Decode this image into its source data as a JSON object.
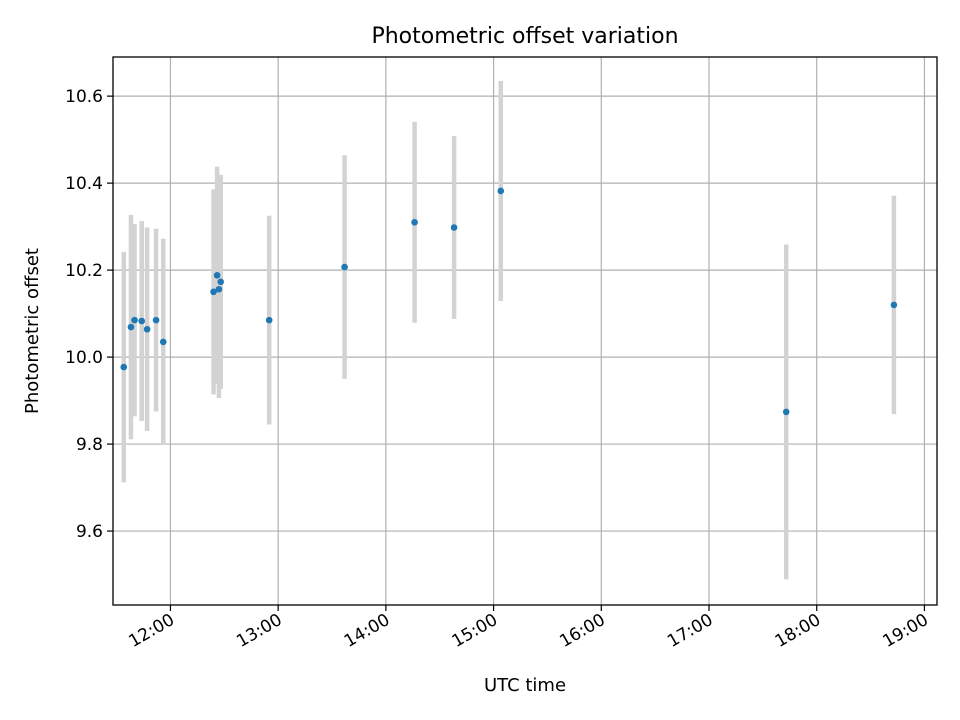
{
  "chart_data": {
    "type": "scatter",
    "title": "Photometric offset variation",
    "xlabel": "UTC time",
    "ylabel": "Photometric offset",
    "grid": true,
    "legend": "none",
    "xlim": [
      "11:28",
      "19:07"
    ],
    "ylim": [
      9.43,
      10.69
    ],
    "x_ticks": [
      "12:00",
      "13:00",
      "14:00",
      "15:00",
      "16:00",
      "17:00",
      "18:00",
      "19:00"
    ],
    "y_ticks": [
      9.6,
      9.8,
      10.0,
      10.2,
      10.4,
      10.6
    ],
    "y_tick_labels": [
      "9.6",
      "9.8",
      "10.0",
      "10.2",
      "10.4",
      "10.6"
    ],
    "colors": {
      "point": "#1f77b4",
      "errorbar": "#d3d3d3"
    },
    "points": [
      {
        "time": "11:34",
        "y": 9.977,
        "yerr": 0.265
      },
      {
        "time": "11:38",
        "y": 10.069,
        "yerr": 0.258
      },
      {
        "time": "11:40",
        "y": 10.085,
        "yerr": 0.221
      },
      {
        "time": "11:44",
        "y": 10.083,
        "yerr": 0.23
      },
      {
        "time": "11:47",
        "y": 10.064,
        "yerr": 0.234
      },
      {
        "time": "11:52",
        "y": 10.085,
        "yerr": 0.21
      },
      {
        "time": "11:56",
        "y": 10.035,
        "yerr": 0.237
      },
      {
        "time": "12:24",
        "y": 10.15,
        "yerr": 0.236
      },
      {
        "time": "12:26",
        "y": 10.188,
        "yerr": 0.25
      },
      {
        "time": "12:27",
        "y": 10.156,
        "yerr": 0.25
      },
      {
        "time": "12:28",
        "y": 10.173,
        "yerr": 0.246
      },
      {
        "time": "12:55",
        "y": 10.085,
        "yerr": 0.24
      },
      {
        "time": "13:37",
        "y": 10.207,
        "yerr": 0.257
      },
      {
        "time": "14:16",
        "y": 10.31,
        "yerr": 0.231
      },
      {
        "time": "14:38",
        "y": 10.298,
        "yerr": 0.21
      },
      {
        "time": "15:04",
        "y": 10.382,
        "yerr": 0.253
      },
      {
        "time": "17:43",
        "y": 9.874,
        "yerr": 0.385
      },
      {
        "time": "18:43",
        "y": 10.12,
        "yerr": 0.251
      }
    ]
  }
}
